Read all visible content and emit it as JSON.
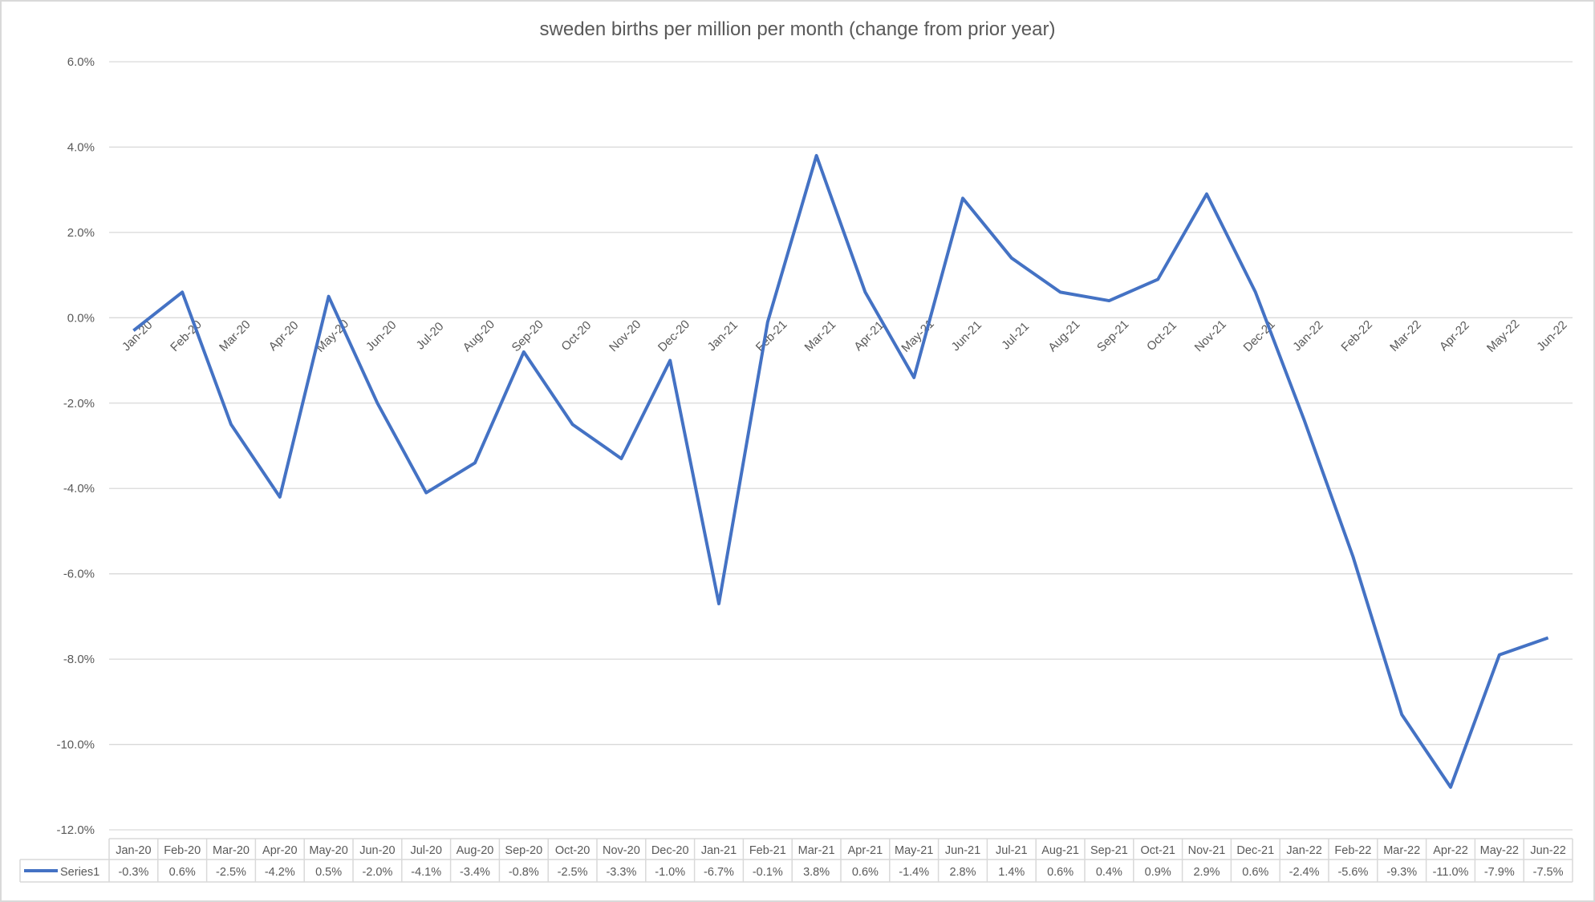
{
  "chart_data": {
    "type": "line",
    "title": "sweden births per million per month (change from prior year)",
    "categories": [
      "Jan-20",
      "Feb-20",
      "Mar-20",
      "Apr-20",
      "May-20",
      "Jun-20",
      "Jul-20",
      "Aug-20",
      "Sep-20",
      "Oct-20",
      "Nov-20",
      "Dec-20",
      "Jan-21",
      "Feb-21",
      "Mar-21",
      "Apr-21",
      "May-21",
      "Jun-21",
      "Jul-21",
      "Aug-21",
      "Sep-21",
      "Oct-21",
      "Nov-21",
      "Dec-21",
      "Jan-22",
      "Feb-22",
      "Mar-22",
      "Apr-22",
      "May-22",
      "Jun-22"
    ],
    "series": [
      {
        "name": "Series1",
        "color": "#4472c4",
        "values": [
          -0.3,
          0.6,
          -2.5,
          -4.2,
          0.5,
          -2.0,
          -4.1,
          -3.4,
          -0.8,
          -2.5,
          -3.3,
          -1.0,
          -6.7,
          -0.1,
          3.8,
          0.6,
          -1.4,
          2.8,
          1.4,
          0.6,
          0.4,
          0.9,
          2.9,
          0.6,
          -2.4,
          -5.6,
          -9.3,
          -11.0,
          -7.9,
          -7.5
        ],
        "labels": [
          "-0.3%",
          "0.6%",
          "-2.5%",
          "-4.2%",
          "0.5%",
          "-2.0%",
          "-4.1%",
          "-3.4%",
          "-0.8%",
          "-2.5%",
          "-3.3%",
          "-1.0%",
          "-6.7%",
          "-0.1%",
          "3.8%",
          "0.6%",
          "-1.4%",
          "2.8%",
          "1.4%",
          "0.6%",
          "0.4%",
          "0.9%",
          "2.9%",
          "0.6%",
          "-2.4%",
          "-5.6%",
          "-9.3%",
          "-11.0%",
          "-7.9%",
          "-7.5%"
        ]
      }
    ],
    "ylim": [
      -12,
      6
    ],
    "yticks": [
      6,
      4,
      2,
      0,
      -2,
      -4,
      -6,
      -8,
      -10,
      -12
    ],
    "ytick_labels": [
      "6.0%",
      "4.0%",
      "2.0%",
      "0.0%",
      "-2.0%",
      "-4.0%",
      "-6.0%",
      "-8.0%",
      "-10.0%",
      "-12.0%"
    ],
    "grid": true,
    "legend": "data-table",
    "xlabel": "",
    "ylabel": ""
  }
}
